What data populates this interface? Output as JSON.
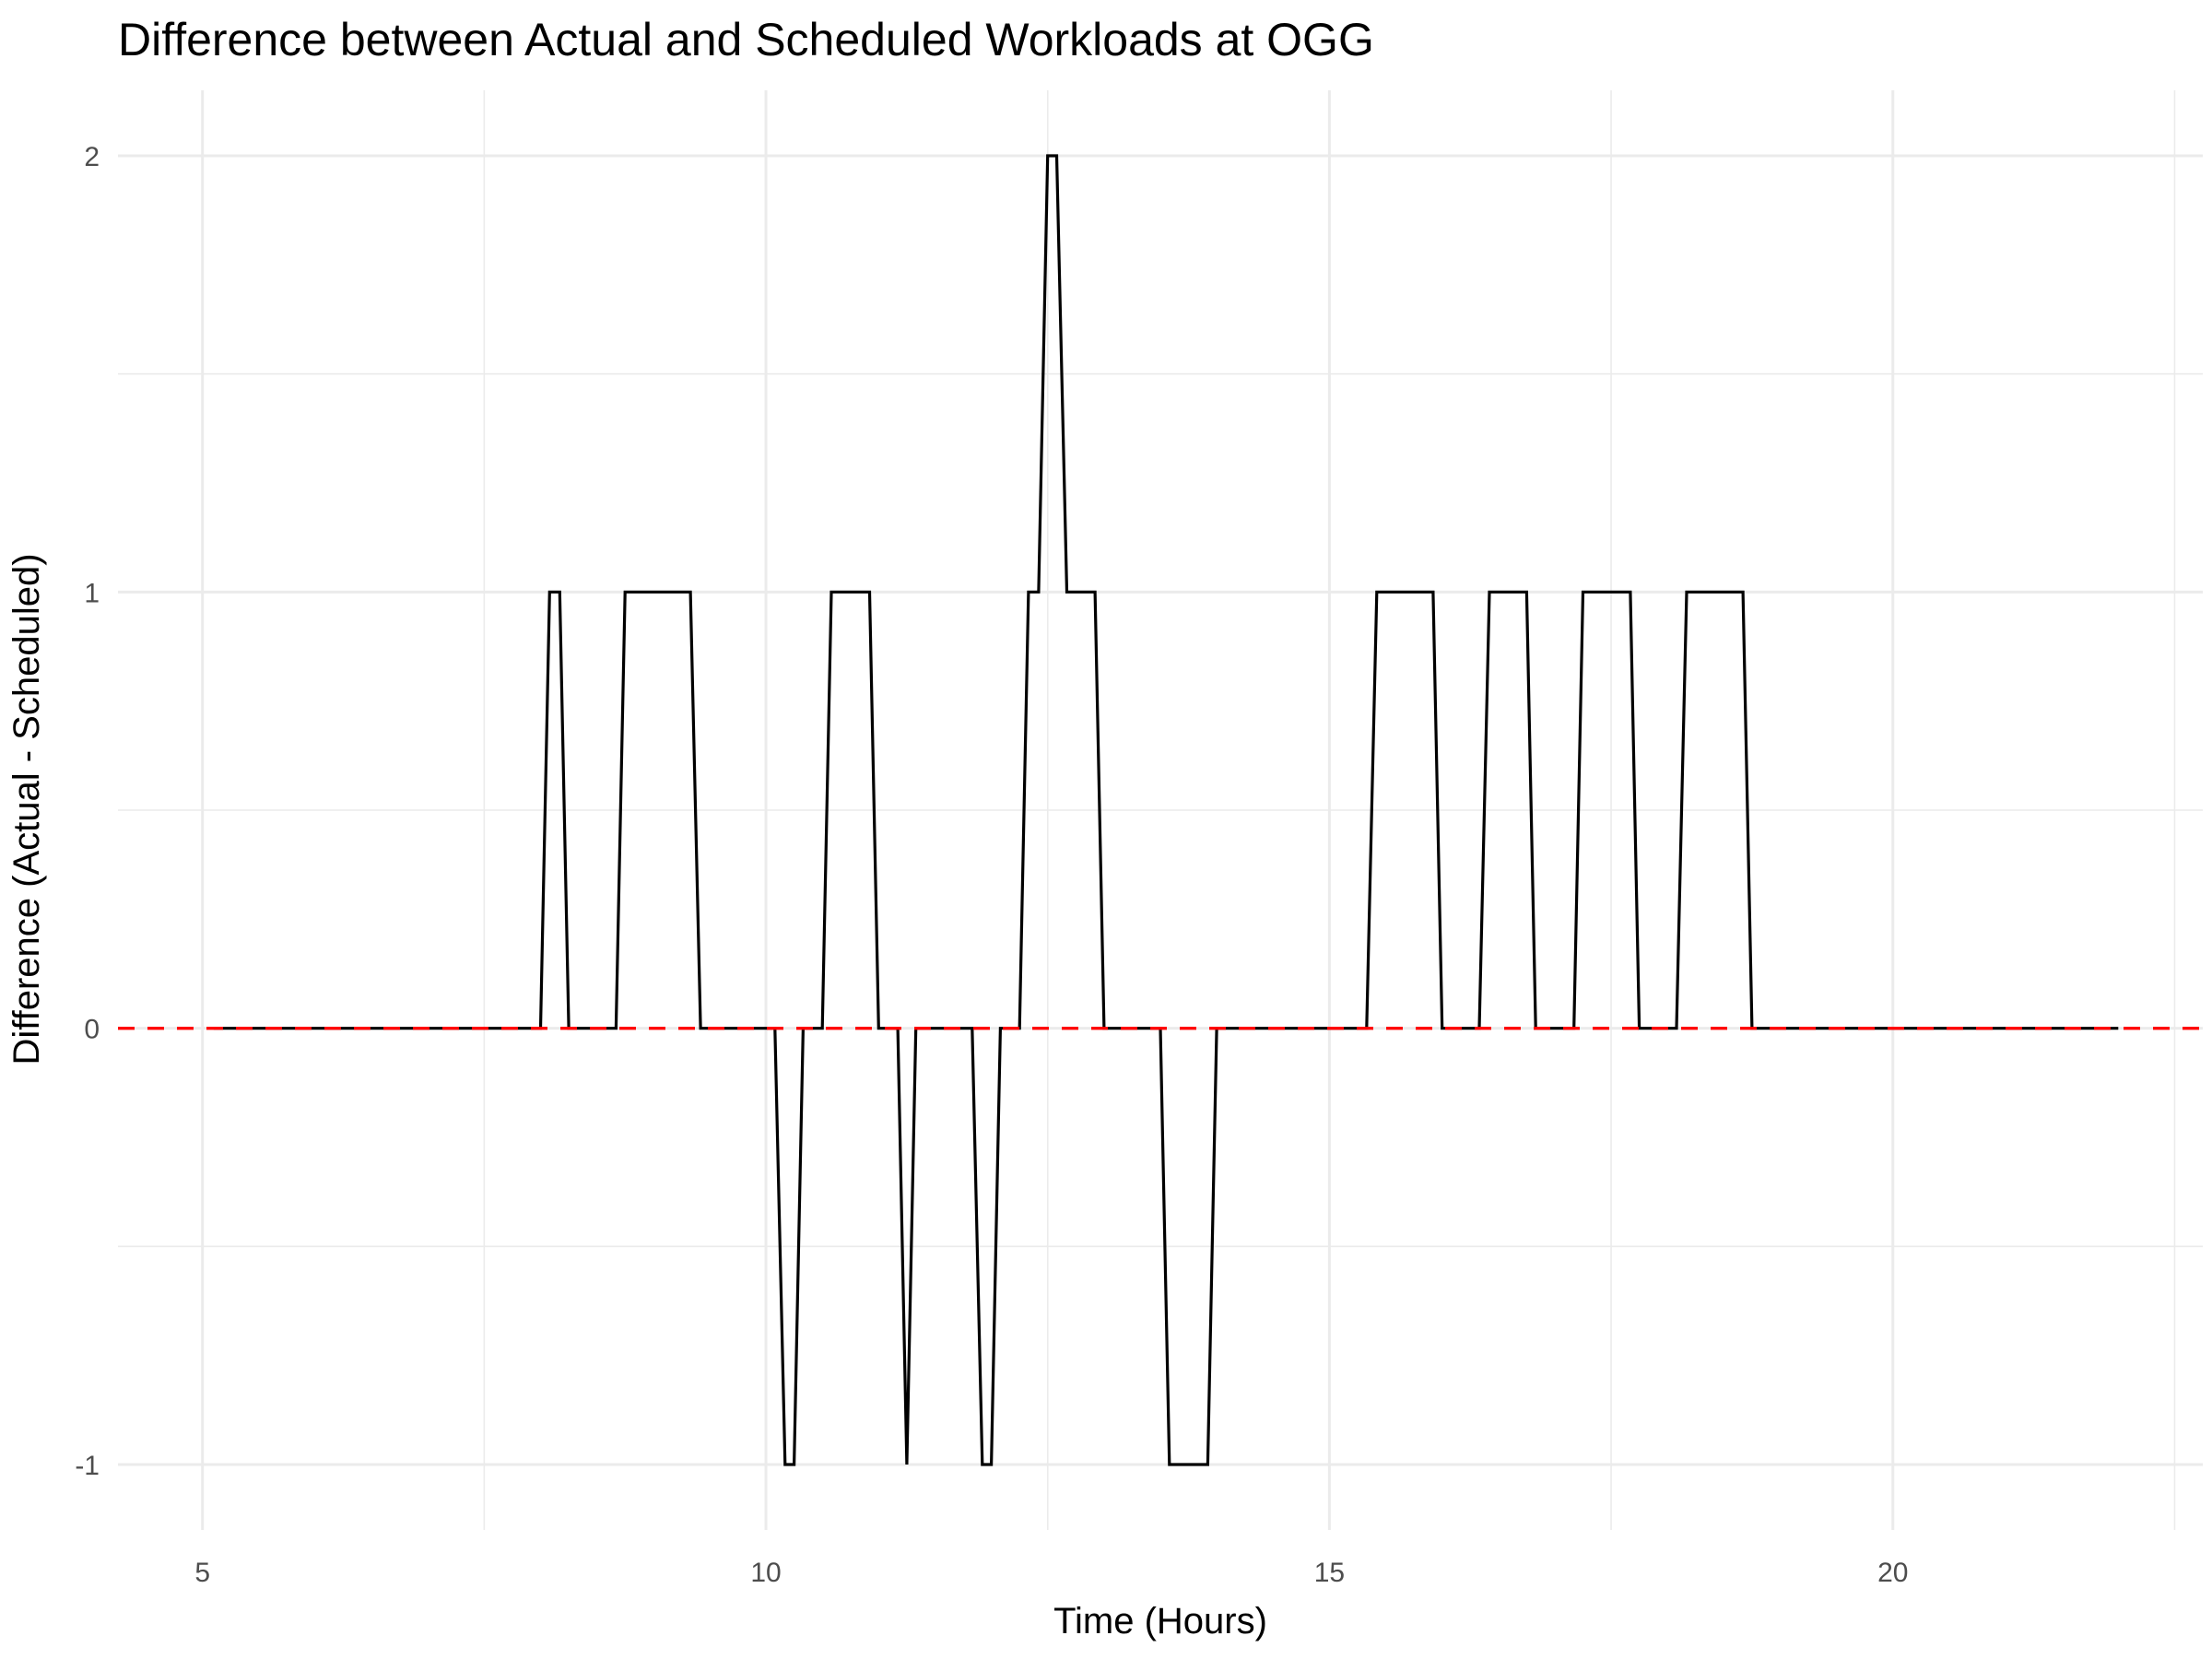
{
  "chart_data": {
    "type": "line",
    "title": "Difference between Actual and Scheduled Workloads at OGG",
    "xlabel": "Time (Hours)",
    "ylabel": "Difference (Actual - Scheduled)",
    "xlim": [
      4.25,
      22.75
    ],
    "ylim": [
      -1.15,
      2.15
    ],
    "x_ticks": [
      5,
      10,
      15,
      20
    ],
    "x_tick_labels": [
      "5",
      "10",
      "15",
      "20"
    ],
    "y_ticks": [
      -1,
      0,
      1,
      2
    ],
    "y_tick_labels": [
      "-1",
      "0",
      "1",
      "2"
    ],
    "grid": true,
    "reference_line": {
      "y": 0,
      "color": "#ff0000",
      "style": "dashed"
    },
    "series": [
      {
        "color": "#000000",
        "x": [
          5.1,
          8.0,
          8.08,
          8.17,
          8.25,
          8.67,
          8.75,
          9.33,
          9.42,
          10.08,
          10.17,
          10.25,
          10.33,
          10.5,
          10.58,
          10.92,
          11.0,
          11.17,
          11.25,
          11.33,
          11.83,
          11.92,
          12.0,
          12.08,
          12.25,
          12.33,
          12.42,
          12.5,
          12.58,
          12.67,
          12.92,
          13.0,
          13.5,
          13.58,
          13.92,
          14.0,
          15.33,
          15.42,
          15.92,
          16.0,
          16.33,
          16.42,
          16.75,
          16.83,
          17.17,
          17.25,
          17.67,
          17.75,
          18.08,
          18.17,
          18.67,
          18.75,
          22.0
        ],
        "y": [
          0,
          0,
          1,
          1,
          0,
          0,
          1,
          1,
          0,
          0,
          -1,
          -1,
          0,
          0,
          1,
          1,
          0,
          0,
          -1,
          0,
          0,
          -1,
          -1,
          0,
          0,
          1,
          1,
          2,
          2,
          1,
          1,
          0,
          0,
          -1,
          -1,
          0,
          0,
          1,
          1,
          0,
          0,
          1,
          1,
          0,
          0,
          1,
          1,
          0,
          0,
          1,
          1,
          0,
          0
        ]
      }
    ]
  }
}
